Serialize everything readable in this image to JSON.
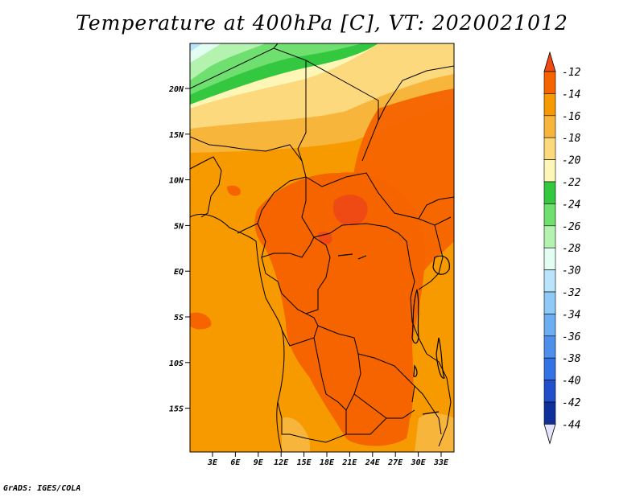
{
  "title": "Temperature at 400hPa [C], VT: 2020021012",
  "footer": "GrADS: IGES/COLA",
  "map": {
    "lat_labels": [
      "20N",
      "15N",
      "10N",
      "5N",
      "EQ",
      "5S",
      "10S",
      "15S"
    ],
    "lon_labels": [
      "3E",
      "6E",
      "9E",
      "12E",
      "15E",
      "18E",
      "21E",
      "24E",
      "27E",
      "30E",
      "33E"
    ]
  },
  "colorbar": {
    "levels": [
      "-12",
      "-14",
      "-16",
      "-18",
      "-20",
      "-22",
      "-24",
      "-26",
      "-28",
      "-30",
      "-32",
      "-34",
      "-36",
      "-38",
      "-40",
      "-42",
      "-44"
    ],
    "colors": [
      "#f04a14",
      "#f66400",
      "#f79a00",
      "#f8b53c",
      "#fbd97c",
      "#fdf6b6",
      "#33c83f",
      "#6fe06f",
      "#b4f2b0",
      "#e2fdf2",
      "#b9e4fb",
      "#8fc9f5",
      "#6daef2",
      "#4f8fec",
      "#3372e4",
      "#1f4fcb",
      "#0f2f9b",
      "#0a1a6d"
    ],
    "top_color": "#f04a14",
    "bottom_color": "#e4e4ff"
  },
  "colors": {
    "field_warm": "#f66400",
    "field_mid": "#f79a00",
    "field_cool": "#f8b53c",
    "boundary": "#000000"
  }
}
